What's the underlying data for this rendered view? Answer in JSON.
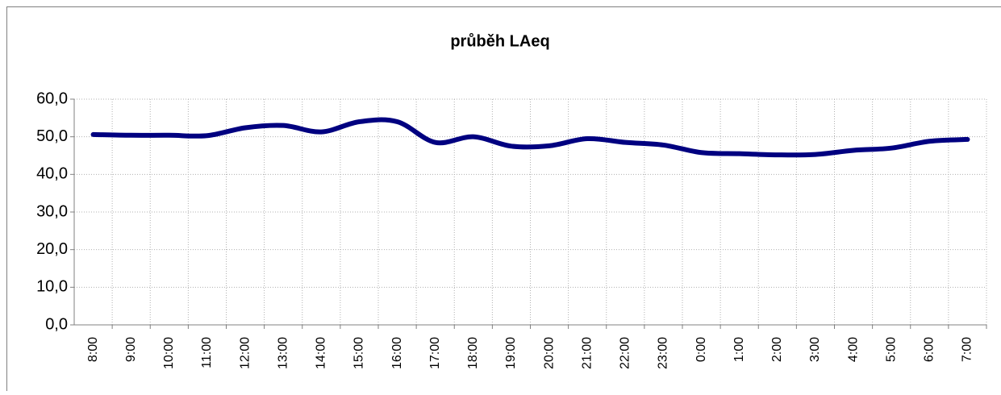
{
  "chart_data": {
    "type": "line",
    "title": "průběh LAeq",
    "categories": [
      "8:00",
      "9:00",
      "10:00",
      "11:00",
      "12:00",
      "13:00",
      "14:00",
      "15:00",
      "16:00",
      "17:00",
      "18:00",
      "19:00",
      "20:00",
      "21:00",
      "22:00",
      "23:00",
      "0:00",
      "1:00",
      "2:00",
      "3:00",
      "4:00",
      "5:00",
      "6:00",
      "7:00"
    ],
    "series": [
      {
        "name": "LAeq",
        "color": "#000080",
        "values": [
          50.6,
          50.4,
          50.4,
          50.3,
          52.4,
          53.0,
          51.3,
          54.0,
          54.0,
          48.5,
          50.0,
          47.5,
          47.6,
          49.5,
          48.5,
          47.8,
          45.8,
          45.5,
          45.2,
          45.3,
          46.4,
          47.0,
          48.8,
          49.3
        ]
      }
    ],
    "ylim": [
      0,
      60
    ],
    "yticks": [
      {
        "value": 0,
        "label": "0,0"
      },
      {
        "value": 10,
        "label": "10,0"
      },
      {
        "value": 20,
        "label": "20,0"
      },
      {
        "value": 30,
        "label": "30,0"
      },
      {
        "value": 40,
        "label": "40,0"
      },
      {
        "value": 50,
        "label": "50,0"
      },
      {
        "value": 60,
        "label": "60,0"
      }
    ],
    "grid": true
  }
}
